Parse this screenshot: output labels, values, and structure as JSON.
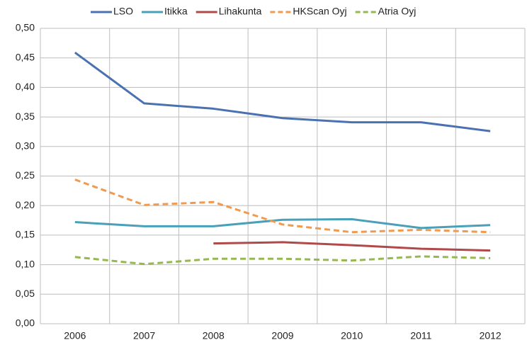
{
  "chart_data": {
    "type": "line",
    "categories": [
      "2006",
      "2007",
      "2008",
      "2009",
      "2010",
      "2011",
      "2012"
    ],
    "series": [
      {
        "name": "LSO",
        "color": "#4a72b0",
        "dashed": false,
        "values": [
          0.459,
          0.373,
          0.364,
          0.348,
          0.341,
          0.341,
          0.326
        ]
      },
      {
        "name": "Itikka",
        "color": "#4aa0b8",
        "dashed": false,
        "values": [
          0.172,
          0.165,
          0.165,
          0.176,
          0.177,
          0.162,
          0.167
        ]
      },
      {
        "name": "Lihakunta",
        "color": "#b04a4a",
        "dashed": false,
        "values": [
          null,
          null,
          0.136,
          0.138,
          0.133,
          0.127,
          0.124
        ]
      },
      {
        "name": "HKScan Oyj",
        "color": "#f09a50",
        "dashed": true,
        "values": [
          0.244,
          0.201,
          0.206,
          0.168,
          0.155,
          0.159,
          0.155
        ]
      },
      {
        "name": "Atria Oyj",
        "color": "#96b850",
        "dashed": true,
        "values": [
          0.113,
          0.101,
          0.11,
          0.11,
          0.107,
          0.114,
          0.111
        ]
      }
    ],
    "ylim": [
      0,
      0.5
    ],
    "yticks": [
      {
        "value": 0,
        "label": "0,00"
      },
      {
        "value": 0.05,
        "label": "0,05"
      },
      {
        "value": 0.1,
        "label": "0,10"
      },
      {
        "value": 0.15,
        "label": "0,15"
      },
      {
        "value": 0.2,
        "label": "0,20"
      },
      {
        "value": 0.25,
        "label": "0,25"
      },
      {
        "value": 0.3,
        "label": "0,30"
      },
      {
        "value": 0.35,
        "label": "0,35"
      },
      {
        "value": 0.4,
        "label": "0,40"
      },
      {
        "value": 0.45,
        "label": "0,45"
      },
      {
        "value": 0.5,
        "label": "0,50"
      }
    ],
    "grid": true,
    "legend": "top"
  }
}
